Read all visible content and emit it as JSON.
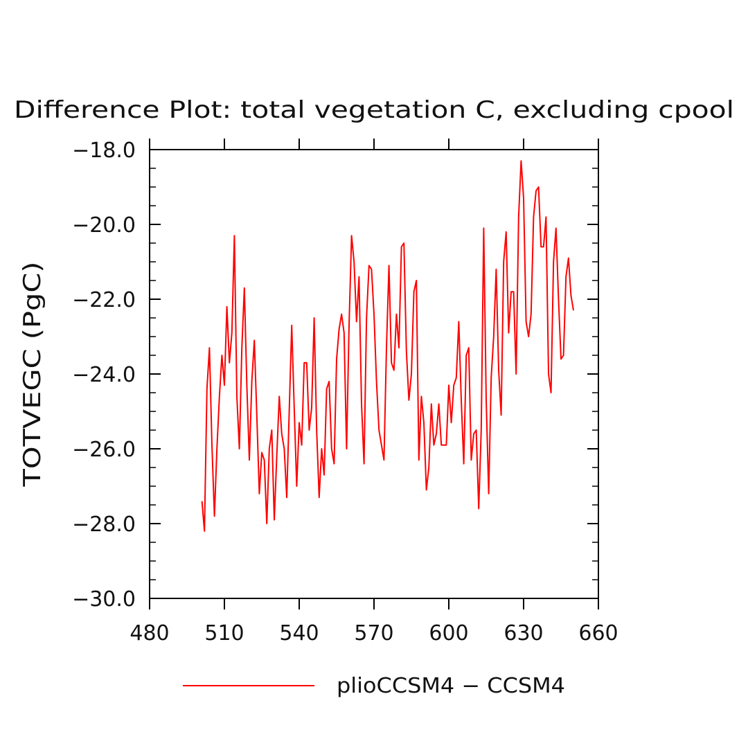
{
  "chart_data": {
    "type": "line",
    "title": "Difference Plot: total vegetation C, excluding cpool",
    "xlabel": "",
    "ylabel": "TOTVEGC  (PgC)",
    "xlim": [
      480,
      660
    ],
    "ylim": [
      -30,
      -18
    ],
    "xticks": [
      480,
      510,
      540,
      570,
      600,
      630,
      660
    ],
    "yticks": [
      -30,
      -28,
      -26,
      -24,
      -22,
      -20,
      -18
    ],
    "x_tick_labels": [
      "480",
      "510",
      "540",
      "570",
      "600",
      "630",
      "660"
    ],
    "y_tick_labels": [
      "−30.0",
      "−28.0",
      "−26.0",
      "−24.0",
      "−22.0",
      "−20.0",
      "−18.0"
    ],
    "grid": false,
    "legend_position": "bottom-center",
    "series": [
      {
        "name": "plioCCSM4 − CCSM4",
        "color": "#ff0000",
        "x": [
          501,
          502,
          503,
          504,
          505,
          506,
          507,
          508,
          509,
          510,
          511,
          512,
          513,
          514,
          515,
          516,
          517,
          518,
          519,
          520,
          521,
          522,
          523,
          524,
          525,
          526,
          527,
          528,
          529,
          530,
          531,
          532,
          533,
          534,
          535,
          536,
          537,
          538,
          539,
          540,
          541,
          542,
          543,
          544,
          545,
          546,
          547,
          548,
          549,
          550,
          551,
          552,
          553,
          554,
          555,
          556,
          557,
          558,
          559,
          560,
          561,
          562,
          563,
          564,
          565,
          566,
          567,
          568,
          569,
          570,
          571,
          572,
          573,
          574,
          575,
          576,
          577,
          578,
          579,
          580,
          581,
          582,
          583,
          584,
          585,
          586,
          587,
          588,
          589,
          590,
          591,
          592,
          593,
          594,
          595,
          596,
          597,
          598,
          599,
          600,
          601,
          602,
          603,
          604,
          605,
          606,
          607,
          608,
          609,
          610,
          611,
          612,
          613,
          614,
          615,
          616,
          617,
          618,
          619,
          620,
          621,
          622,
          623,
          624,
          625,
          626,
          627,
          628,
          629,
          630,
          631,
          632,
          633,
          634,
          635,
          636,
          637,
          638,
          639,
          640,
          641,
          642,
          643,
          644,
          645,
          646,
          647,
          648,
          649,
          650
        ],
        "y": [
          -27.4,
          -28.2,
          -24.4,
          -23.3,
          -25.9,
          -27.8,
          -26.0,
          -24.6,
          -23.5,
          -24.3,
          -22.2,
          -23.7,
          -22.9,
          -20.3,
          -24.6,
          -26.0,
          -23.3,
          -21.7,
          -24.3,
          -26.3,
          -24.2,
          -23.1,
          -25.1,
          -27.2,
          -26.1,
          -26.3,
          -28.0,
          -26.0,
          -25.5,
          -27.9,
          -26.2,
          -24.6,
          -25.6,
          -26.0,
          -27.3,
          -25.0,
          -22.7,
          -24.9,
          -27.0,
          -25.3,
          -25.9,
          -23.7,
          -23.7,
          -25.5,
          -24.9,
          -22.5,
          -25.5,
          -27.3,
          -26.0,
          -26.7,
          -24.4,
          -24.2,
          -26.0,
          -26.4,
          -23.6,
          -22.8,
          -22.4,
          -22.9,
          -26.0,
          -22.7,
          -20.3,
          -21.0,
          -22.6,
          -21.4,
          -24.8,
          -26.4,
          -22.5,
          -21.1,
          -21.2,
          -22.4,
          -24.2,
          -25.5,
          -25.9,
          -26.3,
          -23.3,
          -21.1,
          -23.7,
          -23.9,
          -22.4,
          -23.3,
          -20.6,
          -20.5,
          -23.4,
          -24.7,
          -24.0,
          -21.8,
          -21.5,
          -26.3,
          -24.6,
          -25.3,
          -27.1,
          -26.5,
          -24.8,
          -25.9,
          -25.6,
          -24.8,
          -25.9,
          -25.9,
          -25.9,
          -24.3,
          -25.3,
          -24.3,
          -24.1,
          -22.6,
          -24.7,
          -26.4,
          -23.5,
          -23.3,
          -26.3,
          -25.6,
          -25.5,
          -27.6,
          -25.5,
          -20.1,
          -24.7,
          -27.2,
          -24.1,
          -23.0,
          -21.2,
          -23.9,
          -25.1,
          -21.0,
          -20.2,
          -22.9,
          -21.8,
          -21.8,
          -24.0,
          -19.8,
          -18.3,
          -19.3,
          -22.6,
          -23.0,
          -22.4,
          -19.8,
          -19.1,
          -19.0,
          -20.6,
          -20.6,
          -19.8,
          -24.0,
          -24.5,
          -21.0,
          -20.1,
          -22.0,
          -23.6,
          -23.5,
          -21.4,
          -20.9,
          -21.9,
          -22.3
        ]
      }
    ]
  }
}
